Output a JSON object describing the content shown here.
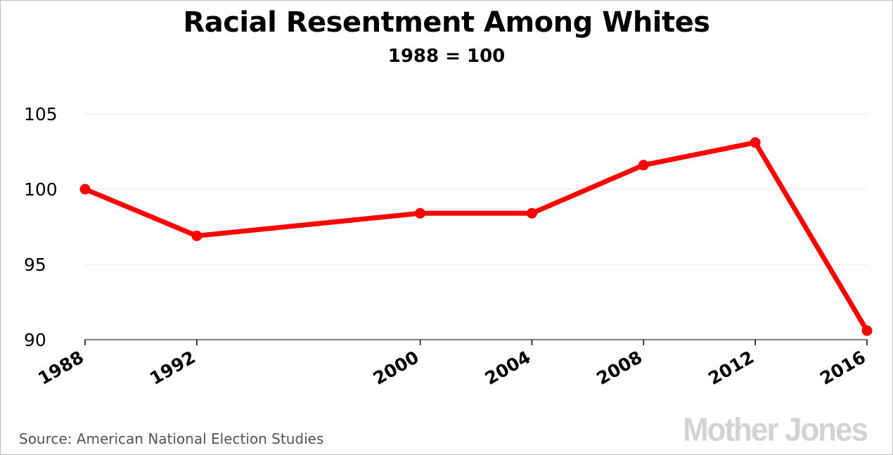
{
  "chart_data": {
    "type": "line",
    "title": "Racial Resentment Among Whites",
    "subtitle": "1988 = 100",
    "x": [
      1988,
      1992,
      2000,
      2004,
      2008,
      2012,
      2016
    ],
    "series": [
      {
        "values": [
          100,
          96.9,
          98.4,
          98.4,
          101.6,
          103.1,
          90.6
        ]
      }
    ],
    "ylim": [
      90,
      105
    ],
    "yticks": [
      90,
      95,
      100,
      105
    ],
    "xlim": [
      1988,
      2016
    ],
    "grid": true,
    "colors": {
      "line": "#ff0000",
      "grid": "#e6e6e6",
      "axis": "#000000"
    }
  },
  "footer": {
    "source": "Source: American National Election Studies",
    "brand": "Mother Jones"
  }
}
